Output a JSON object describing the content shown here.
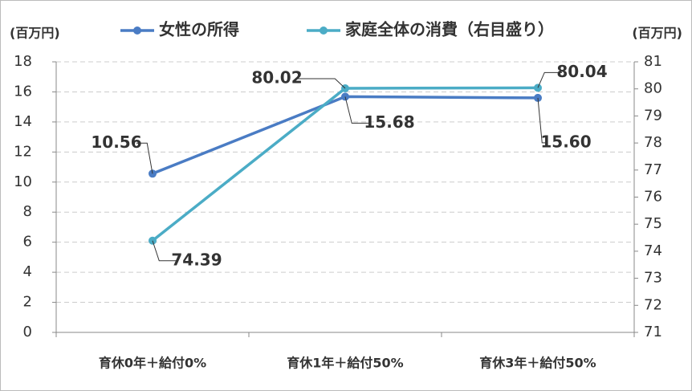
{
  "chart_data": {
    "type": "line",
    "y_label": "(百万円)",
    "y2_label": "(百万円)",
    "categories": [
      "育休0年＋給付0%",
      "育休1年＋給付50%",
      "育休3年＋給付50%"
    ],
    "series": [
      {
        "name": "女性の所得",
        "color": "#4a7cc4",
        "values": [
          10.56,
          15.68,
          15.6
        ],
        "value_labels": [
          "10.56",
          "15.68",
          "15.60"
        ]
      },
      {
        "name": "家庭全体の消費（右目盛り）",
        "color": "#4bacc6",
        "axis": "y2",
        "values": [
          74.39,
          80.02,
          80.04
        ],
        "value_labels": [
          "74.39",
          "80.02",
          "80.04"
        ]
      }
    ],
    "ylim": [
      0,
      18
    ],
    "yticks": [
      0,
      2,
      4,
      6,
      8,
      10,
      12,
      14,
      16,
      18
    ],
    "y2lim": [
      71,
      81
    ],
    "y2ticks": [
      71,
      72,
      73,
      74,
      75,
      76,
      77,
      78,
      79,
      80,
      81
    ],
    "grid": true
  }
}
